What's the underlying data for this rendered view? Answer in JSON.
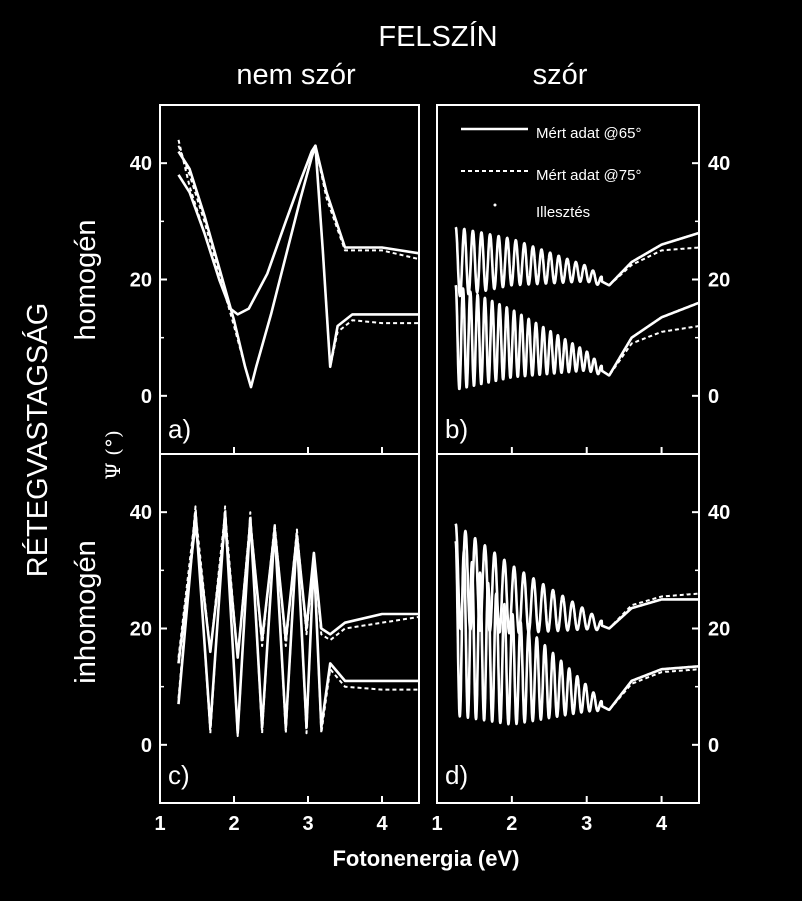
{
  "figure": {
    "top_title": "FELSZÍN",
    "col_titles": [
      "nem szór",
      "szór"
    ],
    "row_title": "RÉTEGVASTAGSÁG",
    "row_labels": [
      "homogén",
      "inhomogén"
    ],
    "ylabel": "Ψ (°)",
    "xlabel": "Fotonenergia (eV)",
    "legend": {
      "measured_65": "Mért adat @65°",
      "measured_75": "Mért adat @75°",
      "fit": "Illesztés"
    },
    "panel_labels": [
      "a)",
      "b)",
      "c)",
      "d)"
    ],
    "colors": {
      "background": "#000000",
      "ink": "#ffffff"
    }
  },
  "chart_data": [
    {
      "type": "line",
      "panel": "a)",
      "xlim": [
        1,
        4.5
      ],
      "ylim": [
        -10,
        50
      ],
      "xticks": [
        1,
        2,
        3,
        4
      ],
      "yticks": [
        0,
        20,
        40
      ],
      "series": [
        {
          "style": "solid",
          "x": [
            1.25,
            1.4,
            1.6,
            1.8,
            1.95,
            2.05,
            2.2,
            2.45,
            2.7,
            2.9,
            3.05,
            3.1,
            3.25,
            3.5,
            4.0,
            4.5
          ],
          "y": [
            38,
            35,
            28,
            20,
            15,
            14,
            15,
            21,
            30,
            37,
            42,
            43,
            35,
            25.5,
            25.5,
            24.5
          ]
        },
        {
          "style": "solid",
          "x": [
            1.25,
            1.4,
            1.6,
            1.8,
            2.0,
            2.15,
            2.23,
            2.3,
            2.5,
            2.7,
            2.9,
            3.05,
            3.1,
            3.2,
            3.3,
            3.4,
            3.6,
            4.0,
            4.5
          ],
          "y": [
            42,
            39,
            31,
            22,
            13,
            5,
            1.5,
            5,
            14,
            24,
            34,
            41,
            43,
            25,
            5,
            12,
            14,
            14,
            14
          ]
        },
        {
          "style": "dashed",
          "x": [
            1.25,
            1.4,
            1.6,
            1.8,
            1.95,
            2.05,
            2.2,
            2.45,
            2.7,
            2.9,
            3.05,
            3.1,
            3.25,
            3.5,
            4.0,
            4.5
          ],
          "y": [
            44,
            36,
            28,
            20,
            15,
            14,
            15,
            21,
            30,
            37,
            42,
            43,
            34,
            25,
            25,
            23.5
          ]
        },
        {
          "style": "dashed",
          "x": [
            1.25,
            1.4,
            1.6,
            1.8,
            2.0,
            2.15,
            2.23,
            2.3,
            2.5,
            2.7,
            2.9,
            3.05,
            3.1,
            3.2,
            3.3,
            3.4,
            3.6,
            4.0,
            4.5
          ],
          "y": [
            43,
            38,
            30,
            21,
            12,
            5,
            1.5,
            5,
            14,
            24,
            34,
            41,
            43,
            25,
            5,
            11,
            13,
            12.5,
            12.5
          ]
        }
      ]
    },
    {
      "type": "line",
      "panel": "b)",
      "xlim": [
        1,
        4.5
      ],
      "ylim": [
        -10,
        50
      ],
      "xticks": [
        1,
        2,
        3,
        4
      ],
      "yticks": [
        0,
        20,
        40
      ],
      "series": [
        {
          "style": "solid",
          "osc": {
            "start": 1.25,
            "end": 3.2,
            "periods": 17,
            "amp_start": 6,
            "amp_end": 0.8
          },
          "x": [
            1.25,
            2.0,
            3.0,
            3.3,
            3.6,
            4.0,
            4.5
          ],
          "y": [
            23,
            23,
            21,
            19,
            23,
            26,
            28
          ]
        },
        {
          "style": "solid",
          "osc": {
            "start": 1.25,
            "end": 3.2,
            "periods": 20,
            "amp_start": 9,
            "amp_end": 0.8
          },
          "x": [
            1.25,
            2.0,
            3.0,
            3.3,
            3.6,
            4.0,
            4.5
          ],
          "y": [
            10,
            9,
            6,
            3.5,
            10,
            13.5,
            16
          ]
        },
        {
          "style": "dashed",
          "osc": {
            "start": 1.25,
            "end": 3.2,
            "periods": 17,
            "amp_start": 6,
            "amp_end": 0.8
          },
          "x": [
            1.25,
            2.0,
            3.0,
            3.3,
            3.6,
            4.0,
            4.5
          ],
          "y": [
            23,
            23,
            21,
            19,
            22.5,
            25,
            25.5
          ]
        },
        {
          "style": "dashed",
          "osc": {
            "start": 1.25,
            "end": 3.2,
            "periods": 20,
            "amp_start": 9,
            "amp_end": 0.8
          },
          "x": [
            1.25,
            2.0,
            3.0,
            3.3,
            3.6,
            4.0,
            4.5
          ],
          "y": [
            10,
            9,
            6,
            3.5,
            9,
            11,
            12
          ]
        }
      ]
    },
    {
      "type": "line",
      "panel": "c)",
      "xlim": [
        1,
        4.5
      ],
      "ylim": [
        -10,
        50
      ],
      "xticks": [
        1,
        2,
        3,
        4
      ],
      "yticks": [
        0,
        20,
        40
      ],
      "series": [
        {
          "style": "solid",
          "x": [
            1.25,
            1.48,
            1.68,
            1.88,
            2.05,
            2.22,
            2.38,
            2.55,
            2.7,
            2.85,
            2.98,
            3.08,
            3.18,
            3.3,
            3.5,
            4.0,
            4.5
          ],
          "y": [
            14,
            38,
            16,
            38,
            15,
            38,
            18,
            37,
            18,
            36,
            20,
            33,
            20,
            19,
            21,
            22.5,
            22.5
          ]
        },
        {
          "style": "solid",
          "x": [
            1.25,
            1.48,
            1.68,
            1.88,
            2.05,
            2.22,
            2.38,
            2.55,
            2.7,
            2.85,
            2.98,
            3.08,
            3.18,
            3.3,
            3.5,
            4.0,
            4.5
          ],
          "y": [
            7,
            40,
            3,
            40,
            2,
            39,
            3,
            37,
            3,
            36,
            3,
            32,
            3,
            14,
            11,
            11,
            11
          ]
        },
        {
          "style": "dashed",
          "x": [
            1.25,
            1.48,
            1.68,
            1.88,
            2.05,
            2.22,
            2.38,
            2.55,
            2.7,
            2.85,
            2.98,
            3.08,
            3.18,
            3.3,
            3.5,
            4.0,
            4.5
          ],
          "y": [
            15,
            40,
            16,
            40,
            15,
            39,
            17,
            38,
            17,
            37,
            19,
            33,
            19,
            18,
            20,
            21,
            22
          ]
        },
        {
          "style": "dashed",
          "x": [
            1.25,
            1.48,
            1.68,
            1.88,
            2.05,
            2.22,
            2.38,
            2.55,
            2.7,
            2.85,
            2.98,
            3.08,
            3.18,
            3.3,
            3.5,
            4.0,
            4.5
          ],
          "y": [
            8,
            41,
            2,
            41,
            1.5,
            40,
            2,
            38,
            2,
            37,
            2,
            33,
            2,
            13,
            10,
            9.5,
            9.5
          ]
        }
      ]
    },
    {
      "type": "line",
      "panel": "d)",
      "xlim": [
        1,
        4.5
      ],
      "ylim": [
        -10,
        50
      ],
      "xticks": [
        1,
        2,
        3,
        4
      ],
      "yticks": [
        0,
        20,
        40
      ],
      "series": [
        {
          "style": "solid",
          "osc": {
            "start": 1.25,
            "end": 3.2,
            "periods": 15,
            "amp_start": 9,
            "amp_end": 0.8
          },
          "x": [
            1.25,
            2.0,
            3.0,
            3.3,
            3.6,
            4.0,
            4.5
          ],
          "y": [
            29,
            25,
            21.5,
            20,
            23.5,
            25,
            25
          ]
        },
        {
          "style": "solid",
          "osc": {
            "start": 1.25,
            "end": 3.2,
            "periods": 18,
            "amp_start": 15,
            "amp_end": 0.8
          },
          "x": [
            1.25,
            2.0,
            3.0,
            3.3,
            3.6,
            4.0,
            4.5
          ],
          "y": [
            20,
            13,
            8,
            6,
            11,
            13,
            13.5
          ]
        },
        {
          "style": "dashed",
          "osc": {
            "start": 1.25,
            "end": 3.2,
            "periods": 15,
            "amp_start": 9,
            "amp_end": 0.8
          },
          "x": [
            1.25,
            2.0,
            3.0,
            3.3,
            3.6,
            4.0,
            4.5
          ],
          "y": [
            29,
            25,
            21.5,
            20,
            24,
            25.5,
            26
          ]
        },
        {
          "style": "dashed",
          "osc": {
            "start": 1.25,
            "end": 3.2,
            "periods": 18,
            "amp_start": 15,
            "amp_end": 0.8
          },
          "x": [
            1.25,
            2.0,
            3.0,
            3.3,
            3.6,
            4.0,
            4.5
          ],
          "y": [
            20,
            13,
            8,
            6,
            10.5,
            12.5,
            13
          ]
        }
      ]
    }
  ]
}
